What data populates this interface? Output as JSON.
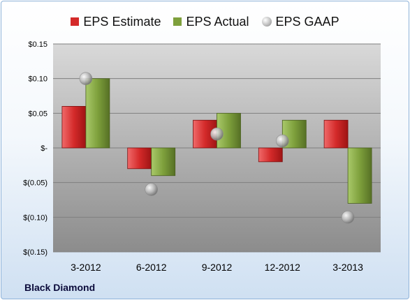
{
  "legend": {
    "estimate": "EPS Estimate",
    "actual": "EPS Actual",
    "gaap": "EPS GAAP"
  },
  "company": "Black Diamond",
  "colors": {
    "estimate": "#d42a2a",
    "actual": "#7ea03c",
    "gaap": "#b9b9b9",
    "plot_top": "#d9d9d9",
    "plot_bottom": "#8c8c8c"
  },
  "chart_data": {
    "type": "bar",
    "categories": [
      "3-2012",
      "6-2012",
      "9-2012",
      "12-2012",
      "3-2013"
    ],
    "series": [
      {
        "name": "EPS Estimate",
        "type": "bar",
        "values": [
          0.06,
          -0.03,
          0.04,
          -0.02,
          0.04
        ]
      },
      {
        "name": "EPS Actual",
        "type": "bar",
        "values": [
          0.1,
          -0.04,
          0.05,
          0.04,
          -0.08
        ]
      },
      {
        "name": "EPS GAAP",
        "type": "scatter",
        "values": [
          0.1,
          -0.06,
          0.02,
          0.01,
          -0.1
        ]
      }
    ],
    "ylim": [
      -0.15,
      0.15
    ],
    "yticks": [
      0.15,
      0.1,
      0.05,
      0,
      -0.05,
      -0.1,
      -0.15
    ],
    "ytick_labels": [
      "$0.15",
      "$0.10",
      "$0.05",
      "$-",
      "$(0.05)",
      "$(0.10)",
      "$(0.15)"
    ],
    "grid": true,
    "legend_position": "top"
  }
}
